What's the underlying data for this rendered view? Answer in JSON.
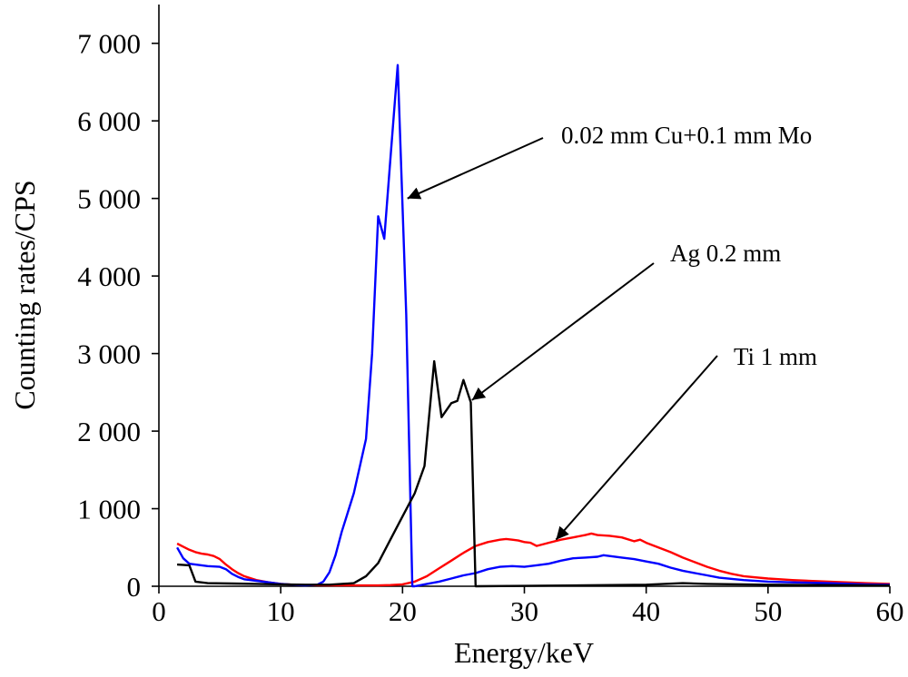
{
  "chart_data": {
    "type": "line",
    "title": "",
    "xlabel": "Energy/keV",
    "ylabel": "Counting rates/CPS",
    "xlim": [
      0,
      60
    ],
    "ylim": [
      0,
      7500
    ],
    "x_ticks": [
      0,
      10,
      20,
      30,
      40,
      50,
      60
    ],
    "x_tick_labels": [
      "0",
      "10",
      "20",
      "30",
      "40",
      "50",
      "60"
    ],
    "y_ticks": [
      0,
      1000,
      2000,
      3000,
      4000,
      5000,
      6000,
      7000
    ],
    "y_tick_labels": [
      "0",
      "1 000",
      "2 000",
      "3 000",
      "4 000",
      "5 000",
      "6 000",
      "7 000"
    ],
    "grid": false,
    "legend": "none",
    "series": [
      {
        "color": "#ff0000",
        "points": [
          [
            1.5,
            550
          ],
          [
            2,
            510
          ],
          [
            2.5,
            470
          ],
          [
            3,
            440
          ],
          [
            3.5,
            420
          ],
          [
            4,
            410
          ],
          [
            4.5,
            390
          ],
          [
            5,
            350
          ],
          [
            5.5,
            280
          ],
          [
            6,
            220
          ],
          [
            6.5,
            170
          ],
          [
            7,
            130
          ],
          [
            8,
            80
          ],
          [
            9,
            50
          ],
          [
            10,
            30
          ],
          [
            11,
            20
          ],
          [
            12,
            15
          ],
          [
            14,
            10
          ],
          [
            16,
            10
          ],
          [
            18,
            10
          ],
          [
            19,
            15
          ],
          [
            20,
            25
          ],
          [
            21,
            60
          ],
          [
            22,
            130
          ],
          [
            23,
            230
          ],
          [
            24,
            330
          ],
          [
            25,
            430
          ],
          [
            26,
            520
          ],
          [
            27,
            570
          ],
          [
            28,
            600
          ],
          [
            28.5,
            610
          ],
          [
            29,
            600
          ],
          [
            29.5,
            590
          ],
          [
            30,
            570
          ],
          [
            30.5,
            560
          ],
          [
            31,
            520
          ],
          [
            32,
            560
          ],
          [
            33,
            600
          ],
          [
            34,
            630
          ],
          [
            35,
            660
          ],
          [
            35.5,
            680
          ],
          [
            36,
            660
          ],
          [
            37,
            650
          ],
          [
            38,
            630
          ],
          [
            39,
            580
          ],
          [
            39.5,
            600
          ],
          [
            40,
            560
          ],
          [
            41,
            500
          ],
          [
            42,
            440
          ],
          [
            43,
            370
          ],
          [
            44,
            310
          ],
          [
            45,
            250
          ],
          [
            46,
            200
          ],
          [
            47,
            160
          ],
          [
            48,
            130
          ],
          [
            50,
            100
          ],
          [
            52,
            80
          ],
          [
            55,
            60
          ],
          [
            58,
            40
          ],
          [
            60,
            30
          ]
        ]
      },
      {
        "color": "#0000ff",
        "points": [
          [
            1.5,
            500
          ],
          [
            2,
            360
          ],
          [
            2.5,
            290
          ],
          [
            3,
            280
          ],
          [
            4,
            260
          ],
          [
            5,
            250
          ],
          [
            5.5,
            220
          ],
          [
            6,
            160
          ],
          [
            6.5,
            120
          ],
          [
            7,
            90
          ],
          [
            8,
            70
          ],
          [
            9,
            50
          ],
          [
            10,
            30
          ],
          [
            11,
            20
          ],
          [
            12,
            10
          ],
          [
            13,
            20
          ],
          [
            13.5,
            60
          ],
          [
            14,
            180
          ],
          [
            14.5,
            400
          ],
          [
            15,
            700
          ],
          [
            16,
            1200
          ],
          [
            17,
            1900
          ],
          [
            17.5,
            3000
          ],
          [
            18,
            4770
          ],
          [
            18.5,
            4480
          ],
          [
            19,
            5500
          ],
          [
            19.6,
            6720
          ],
          [
            20.3,
            3500
          ],
          [
            20.8,
            0
          ],
          [
            21,
            0
          ],
          [
            22,
            30
          ],
          [
            23,
            60
          ],
          [
            24,
            100
          ],
          [
            25,
            140
          ],
          [
            26,
            170
          ],
          [
            27,
            220
          ],
          [
            28,
            250
          ],
          [
            29,
            260
          ],
          [
            30,
            250
          ],
          [
            31,
            270
          ],
          [
            32,
            290
          ],
          [
            33,
            330
          ],
          [
            34,
            360
          ],
          [
            35,
            370
          ],
          [
            36,
            380
          ],
          [
            36.5,
            400
          ],
          [
            37,
            390
          ],
          [
            38,
            370
          ],
          [
            39,
            350
          ],
          [
            40,
            320
          ],
          [
            41,
            290
          ],
          [
            42,
            240
          ],
          [
            43,
            200
          ],
          [
            44,
            170
          ],
          [
            45,
            140
          ],
          [
            46,
            110
          ],
          [
            48,
            80
          ],
          [
            50,
            60
          ],
          [
            52,
            50
          ],
          [
            55,
            40
          ],
          [
            58,
            25
          ],
          [
            60,
            20
          ]
        ]
      },
      {
        "color": "#000000",
        "points": [
          [
            1.5,
            280
          ],
          [
            2.5,
            270
          ],
          [
            3,
            60
          ],
          [
            4,
            40
          ],
          [
            6,
            35
          ],
          [
            8,
            30
          ],
          [
            10,
            25
          ],
          [
            12,
            20
          ],
          [
            14,
            20
          ],
          [
            16,
            40
          ],
          [
            17,
            130
          ],
          [
            18,
            300
          ],
          [
            19,
            600
          ],
          [
            20,
            900
          ],
          [
            21,
            1200
          ],
          [
            21.8,
            1550
          ],
          [
            22.6,
            2900
          ],
          [
            23.2,
            2180
          ],
          [
            24,
            2360
          ],
          [
            24.5,
            2390
          ],
          [
            25,
            2660
          ],
          [
            25.6,
            2370
          ],
          [
            26,
            0
          ],
          [
            30,
            5
          ],
          [
            40,
            20
          ],
          [
            43,
            40
          ],
          [
            45,
            30
          ],
          [
            50,
            20
          ],
          [
            55,
            15
          ],
          [
            60,
            10
          ]
        ]
      }
    ],
    "annotations": [
      {
        "text": "0.02 mm Cu+0.1 mm Mo",
        "arrow_to": [
          20.4,
          5000
        ]
      },
      {
        "text": "Ag 0.2 mm",
        "arrow_to": [
          25.7,
          2400
        ]
      },
      {
        "text": "Ti 1 mm",
        "arrow_to": [
          32.6,
          600
        ]
      }
    ]
  }
}
